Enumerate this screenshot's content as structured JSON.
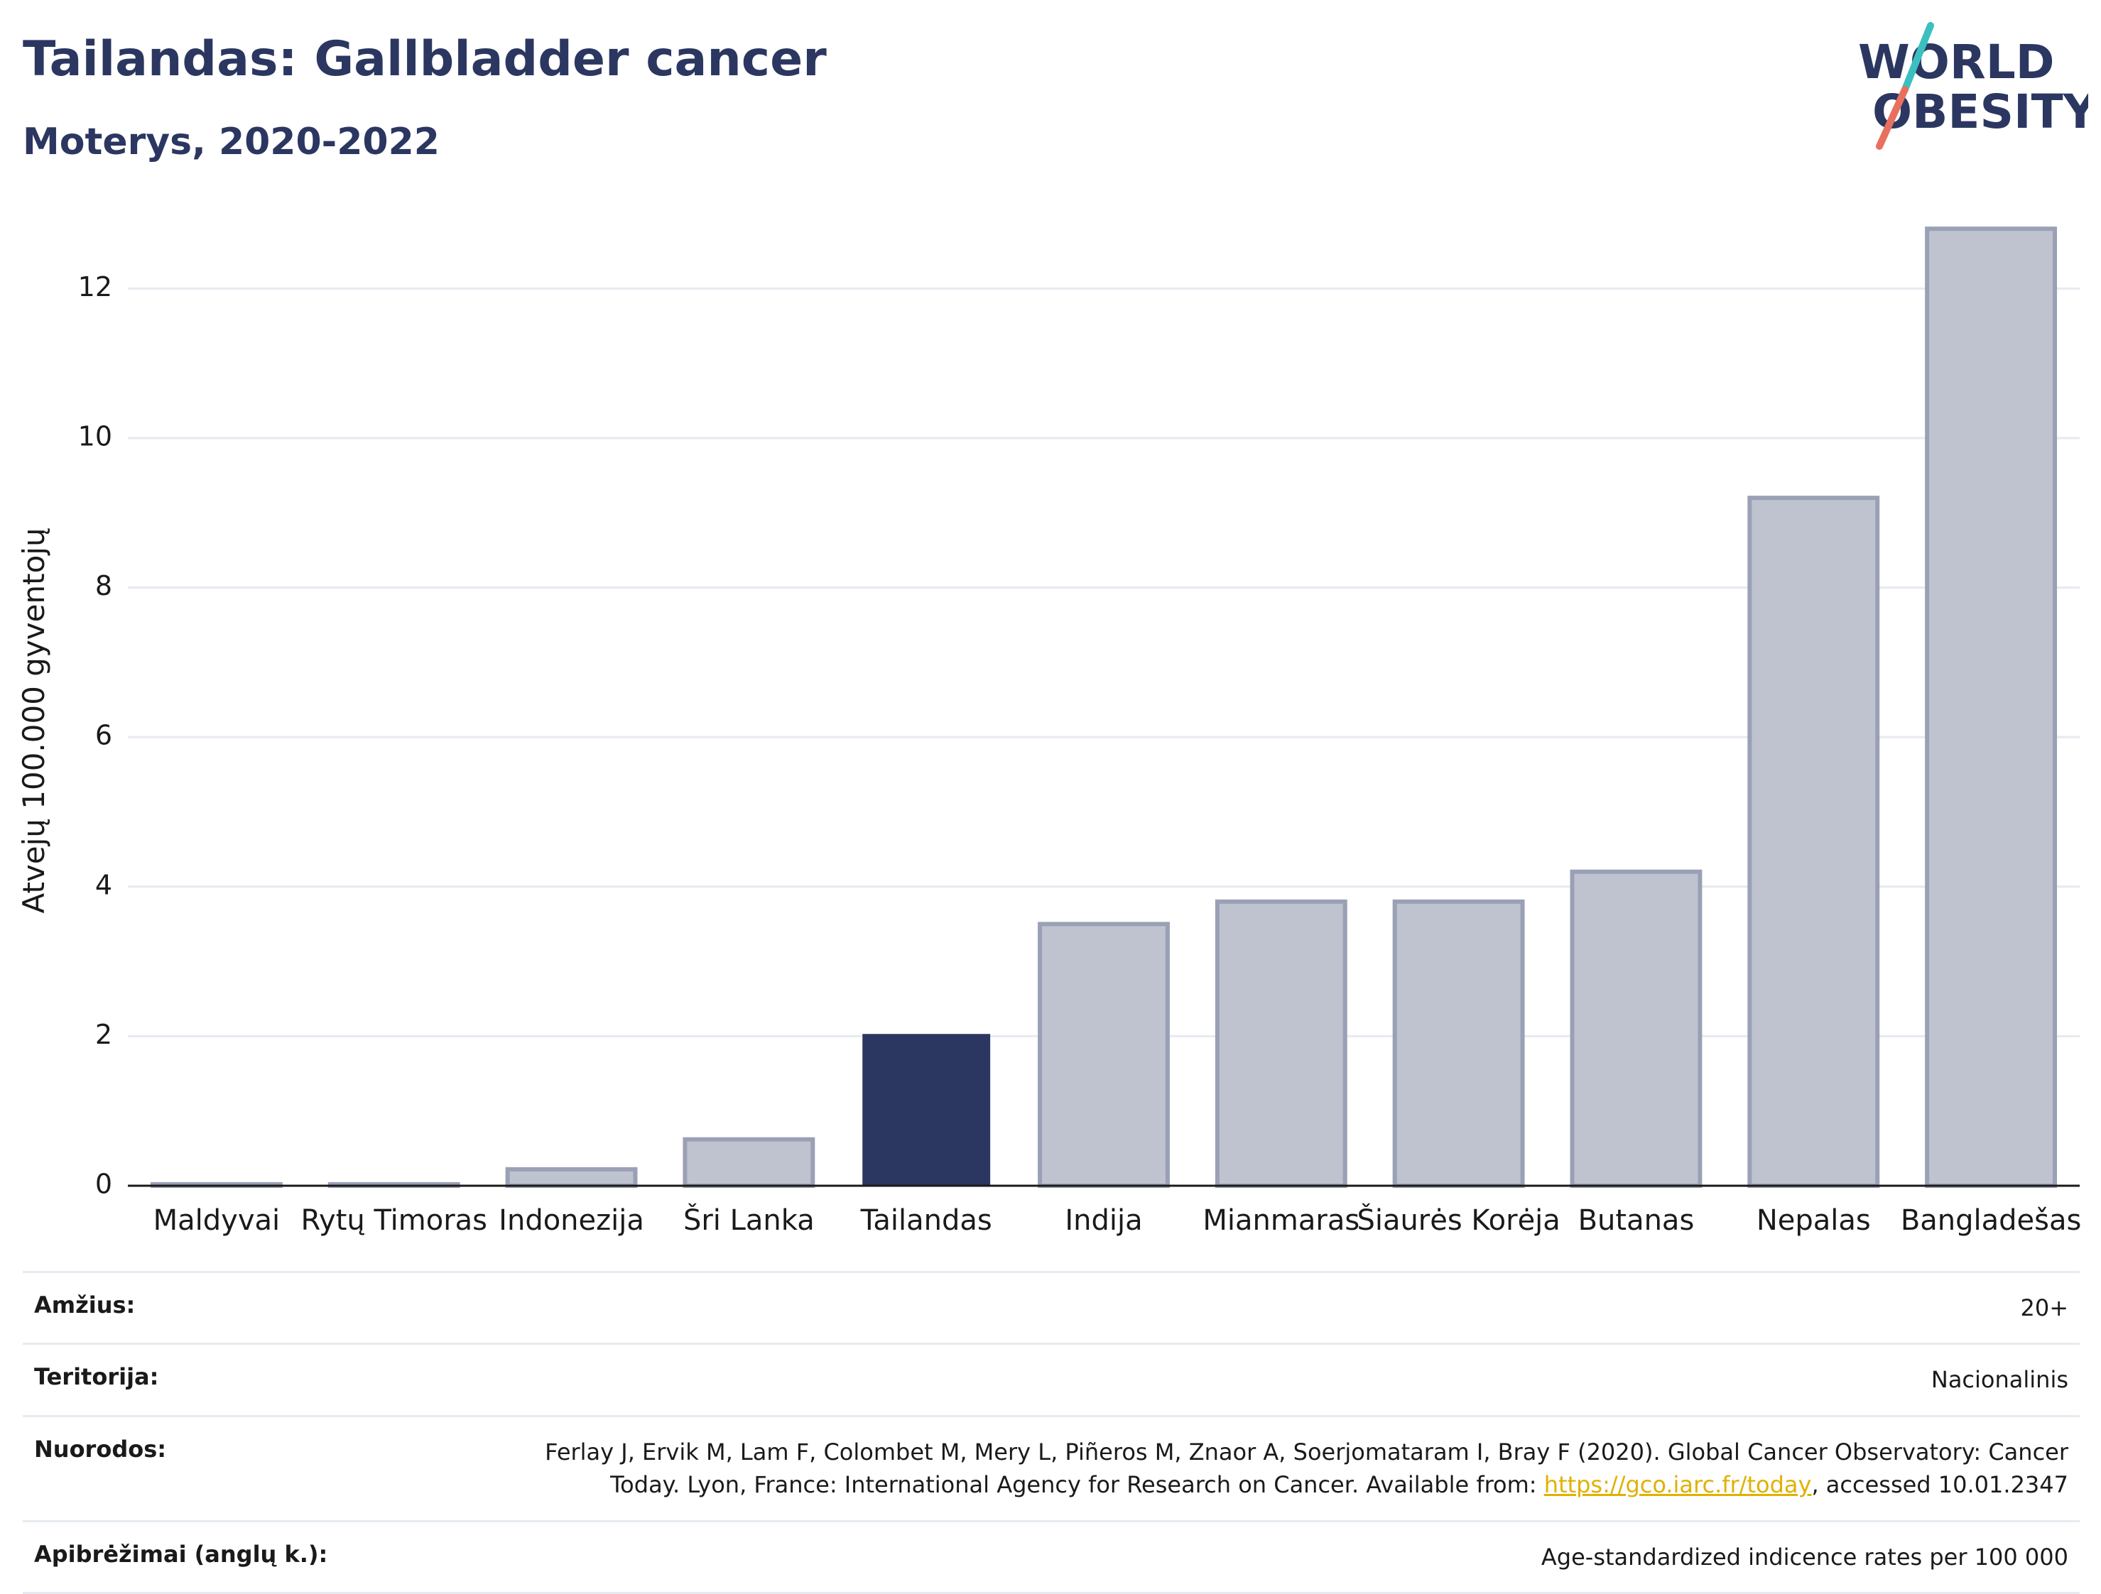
{
  "header": {
    "title": "Tailandas: Gallbladder cancer",
    "subtitle": "Moterys, 2020-2022"
  },
  "logo": {
    "line1": "WORLD",
    "line2": "OBESITY"
  },
  "chart_data": {
    "type": "bar",
    "categories": [
      "Maldyvai",
      "Rytų Timoras",
      "Indonezija",
      "Šri Lanka",
      "Tailandas",
      "Indija",
      "Mianmaras",
      "Šiaurės Korėja",
      "Butanas",
      "Nepalas",
      "Bangladešas"
    ],
    "values": [
      0.02,
      0.02,
      0.22,
      0.62,
      2.03,
      3.5,
      3.8,
      3.8,
      4.2,
      9.2,
      12.8
    ],
    "highlight": "Tailandas",
    "ylabel": "Atvejų 100.000 gyventojų",
    "xlabel": "",
    "ylim": [
      0,
      13.2
    ],
    "yticks": [
      0,
      2,
      4,
      6,
      8,
      10,
      12
    ],
    "grid": true,
    "colors": {
      "highlight": "#2b3760",
      "other": "#bfc3d0",
      "other_border": "#9aa0b5"
    }
  },
  "info": {
    "age_label": "Amžius:",
    "age_value": "20+",
    "territory_label": "Teritorija:",
    "territory_value": "Nacionalinis",
    "refs_label": "Nuorodos:",
    "refs_text_1": "Ferlay J, Ervik M, Lam F, Colombet M, Mery L, Piñeros M, Znaor A, Soerjomataram I, Bray F (2020). Global Cancer Observatory: Cancer",
    "refs_text_2": "Today. Lyon, France: International Agency for Research on Cancer. Available from: ",
    "refs_link": "https://gco.iarc.fr/today",
    "refs_text_3": ", accessed 10.01.2347",
    "def_label": "Apibrėžimai (anglų k.):",
    "def_value": "Age-standardized indicence rates per 100 000"
  }
}
